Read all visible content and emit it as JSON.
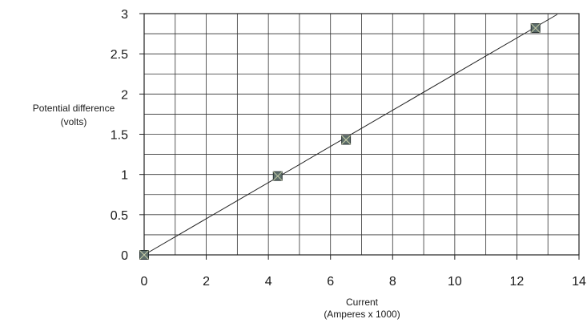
{
  "chart_data": {
    "type": "scatter",
    "xlabel": [
      "Current",
      "(Amperes x 1000)"
    ],
    "ylabel": [
      "Potential difference",
      "(volts)"
    ],
    "xlim": [
      0,
      14
    ],
    "ylim": [
      0,
      3
    ],
    "x_ticks": [
      0,
      2,
      4,
      6,
      8,
      10,
      12,
      14
    ],
    "y_ticks": [
      0,
      0.5,
      1,
      1.5,
      2,
      2.5,
      3
    ],
    "x_minor_step": 1,
    "y_minor_step": 0.25,
    "grid": true,
    "legend": "none",
    "series": [
      {
        "x": [
          0,
          4.3,
          6.5,
          12.6
        ],
        "y": [
          0,
          0.98,
          1.43,
          2.82
        ],
        "marker": "square",
        "marker_color": "#5e6f6c"
      }
    ],
    "trendline": {
      "x": [
        0,
        13.3
      ],
      "y": [
        0,
        2.99
      ]
    }
  }
}
